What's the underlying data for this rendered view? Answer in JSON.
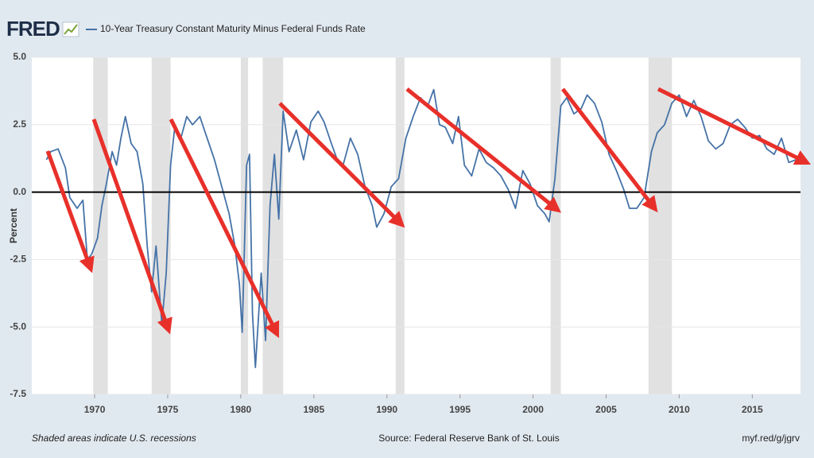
{
  "header": {
    "logo": "FRED"
  },
  "chart_data": {
    "type": "line",
    "ylabel": "Percent",
    "footnote": "Shaded areas indicate U.S. recessions",
    "source": "Source: Federal Reserve Bank of St. Louis",
    "link": "myf.red/g/jgrv",
    "xlim": [
      1965.7,
      2018.3
    ],
    "ylim": [
      -7.5,
      5
    ],
    "xticks": [
      1970,
      1975,
      1980,
      1985,
      1990,
      1995,
      2000,
      2005,
      2010,
      2015
    ],
    "yticks": [
      {
        "value": 5,
        "label": "5.0"
      },
      {
        "value": 2.5,
        "label": "2.5"
      },
      {
        "value": 0,
        "label": "0.0"
      },
      {
        "value": -2.5,
        "label": "-2.5"
      },
      {
        "value": -5,
        "label": "-5.0"
      },
      {
        "value": -7.5,
        "label": "-7.5"
      }
    ],
    "grid": true,
    "recession_color": "#e1e1e1",
    "recessions": [
      [
        1969.9,
        1970.9
      ],
      [
        1973.9,
        1975.2
      ],
      [
        1980.0,
        1980.5
      ],
      [
        1981.5,
        1982.9
      ],
      [
        1990.6,
        1991.2
      ],
      [
        2001.2,
        2001.9
      ],
      [
        2007.9,
        2009.5
      ]
    ],
    "x": [
      1966.7,
      1967,
      1967.5,
      1968,
      1968.3,
      1968.8,
      1969.2,
      1969.5,
      1969.8,
      1970.2,
      1970.5,
      1970.8,
      1971.2,
      1971.5,
      1971.8,
      1972.1,
      1972.5,
      1972.9,
      1973.3,
      1973.6,
      1973.9,
      1974.2,
      1974.6,
      1974.9,
      1975.2,
      1975.5,
      1975.9,
      1976.3,
      1976.7,
      1977.2,
      1977.7,
      1978.2,
      1978.7,
      1979.2,
      1979.6,
      1979.9,
      1980.1,
      1980.4,
      1980.6,
      1980.8,
      1981.0,
      1981.4,
      1981.7,
      1982.0,
      1982.3,
      1982.6,
      1982.9,
      1983.3,
      1983.8,
      1984.3,
      1984.8,
      1985.3,
      1985.7,
      1986.2,
      1986.6,
      1987.0,
      1987.5,
      1988.0,
      1988.5,
      1989.0,
      1989.3,
      1989.8,
      1990.3,
      1990.8,
      1991.3,
      1991.8,
      1992.3,
      1992.8,
      1993.2,
      1993.6,
      1994.0,
      1994.5,
      1994.9,
      1995.3,
      1995.8,
      1996.3,
      1996.8,
      1997.3,
      1997.8,
      1998.3,
      1998.8,
      1999.3,
      1999.8,
      2000.3,
      2000.8,
      2001.1,
      2001.5,
      2001.9,
      2002.3,
      2002.8,
      2003.3,
      2003.7,
      2004.2,
      2004.7,
      2005.2,
      2005.7,
      2006.2,
      2006.6,
      2007.1,
      2007.6,
      2008.1,
      2008.5,
      2009.0,
      2009.5,
      2010.0,
      2010.5,
      2011.0,
      2011.5,
      2012.0,
      2012.5,
      2013.0,
      2013.5,
      2014.0,
      2014.5,
      2015.0,
      2015.5,
      2016.0,
      2016.5,
      2017.0,
      2017.5,
      2018.0
    ],
    "series": [
      {
        "name": "10-Year Treasury Constant Maturity Minus Federal Funds Rate",
        "color": "#4572a7",
        "values": [
          1.2,
          1.5,
          1.6,
          0.9,
          -0.2,
          -0.6,
          -0.3,
          -2.5,
          -2.3,
          -1.7,
          -0.5,
          0.3,
          1.5,
          1.0,
          2.0,
          2.8,
          1.8,
          1.5,
          0.3,
          -2.0,
          -3.7,
          -2.0,
          -4.9,
          -3.0,
          1.0,
          2.5,
          2.0,
          2.8,
          2.5,
          2.8,
          2.0,
          1.2,
          0.2,
          -0.8,
          -2.0,
          -3.4,
          -5.2,
          1.0,
          1.4,
          -4.5,
          -6.5,
          -3.0,
          -5.5,
          -0.5,
          1.4,
          -1.0,
          3.0,
          1.5,
          2.3,
          1.2,
          2.6,
          3.0,
          2.6,
          1.8,
          1.2,
          1.0,
          2.0,
          1.4,
          0.2,
          -0.5,
          -1.3,
          -0.8,
          0.2,
          0.5,
          2.0,
          2.8,
          3.5,
          3.2,
          3.8,
          2.5,
          2.4,
          1.8,
          2.8,
          1.0,
          0.6,
          1.6,
          1.1,
          0.9,
          0.6,
          0.1,
          -0.6,
          0.8,
          0.3,
          -0.5,
          -0.8,
          -1.1,
          0.5,
          3.2,
          3.5,
          2.9,
          3.1,
          3.6,
          3.3,
          2.6,
          1.4,
          0.8,
          0.1,
          -0.6,
          -0.6,
          -0.2,
          1.5,
          2.2,
          2.5,
          3.3,
          3.6,
          2.8,
          3.4,
          2.8,
          1.9,
          1.6,
          1.8,
          2.5,
          2.7,
          2.4,
          2.0,
          2.1,
          1.6,
          1.4,
          2.0,
          1.1,
          1.2
        ]
      }
    ]
  }
}
